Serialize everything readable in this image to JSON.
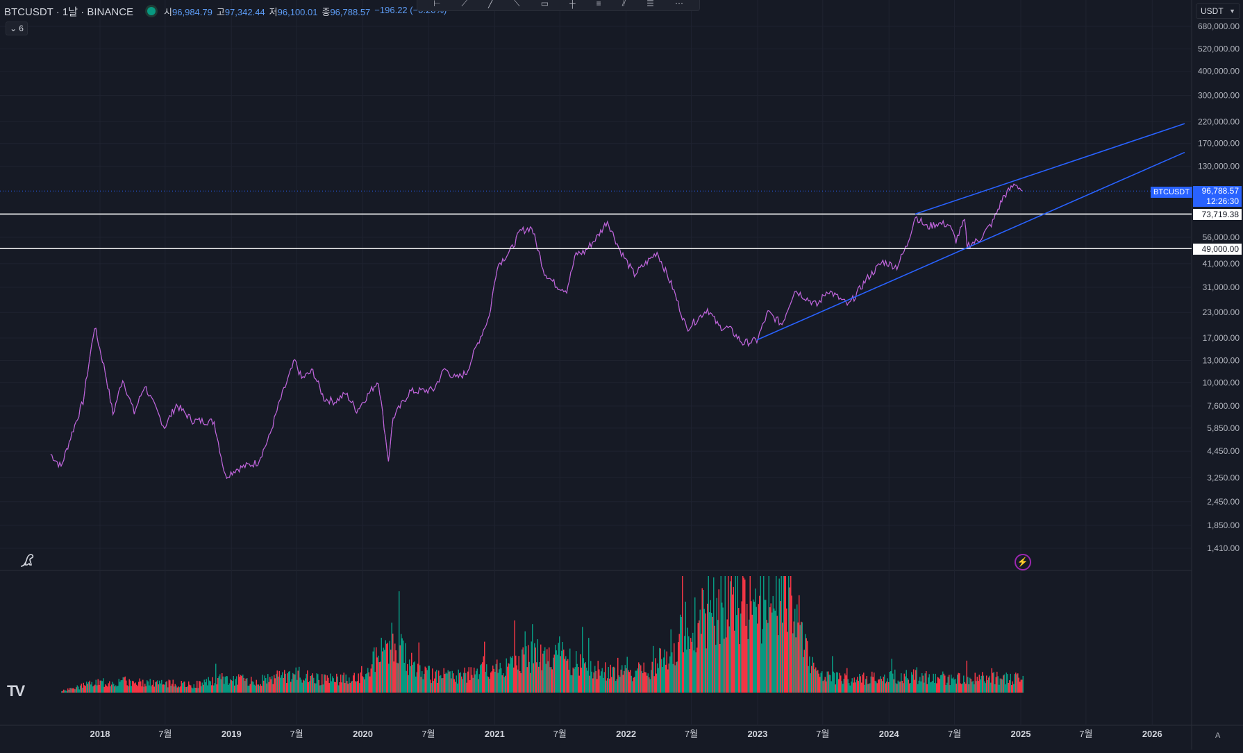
{
  "header": {
    "symbol_line": "BTCUSDT · 1날 · BINANCE",
    "ohlc": [
      {
        "key": "시",
        "value": "96,984.79"
      },
      {
        "key": "고",
        "value": "97,342.44"
      },
      {
        "key": "저",
        "value": "96,100.01"
      },
      {
        "key": "종",
        "value": "96,788.57"
      }
    ],
    "change": "−196.22 (−0.20%)",
    "indicator_count": "6"
  },
  "toolbar": {
    "currency": "USDT",
    "tool_icons": [
      "horizontal-line-icon",
      "ray-icon",
      "trend-line-icon",
      "extended-line-icon",
      "rectangle-icon",
      "cross-line-icon",
      "parallel-channel-icon",
      "parallel-lines-icon",
      "fib-icon",
      "ruler-icon"
    ]
  },
  "price_axis": {
    "labels": [
      "680,000.00",
      "520,000.00",
      "400,000.00",
      "300,000.00",
      "220,000.00",
      "170,000.00",
      "130,000.00",
      "56,000.00",
      "41,000.00",
      "31,000.00",
      "23,000.00",
      "17,000.00",
      "13,000.00",
      "10,000.00",
      "7,600.00",
      "5,850.00",
      "4,450.00",
      "3,250.00",
      "2,450.00",
      "1,850.00",
      "1,410.00"
    ]
  },
  "price_tags": {
    "current_symbol": "BTCUSDT",
    "current_price": "96,788.57",
    "countdown": "12:26:30",
    "level_1": "73,719.38",
    "level_2": "49,000.00"
  },
  "time_axis": {
    "labels": [
      "2018",
      "7월",
      "2019",
      "7월",
      "2020",
      "7월",
      "2021",
      "7월",
      "2022",
      "7월",
      "2023",
      "7월",
      "2024",
      "7월",
      "2025",
      "7월",
      "2026"
    ]
  },
  "footer": {
    "auto_label": "A"
  },
  "colors": {
    "background": "#161a25",
    "up": "#089981",
    "down": "#f23645",
    "price_line": "#c95fd6",
    "channel": "#2962ff",
    "levels": "#ffffff"
  },
  "chart_data": {
    "type": "line",
    "title": "",
    "y_scale": "log",
    "ylim": [
      1410,
      680000
    ],
    "x_range": [
      "2017-09-01",
      "2026-04-01"
    ],
    "series": [
      {
        "values_x": [
          "2017-08-17",
          "2017-09-15",
          "2017-10-15",
          "2017-11-15",
          "2017-12-17",
          "2018-01-15",
          "2018-02-06",
          "2018-03-05",
          "2018-04-06",
          "2018-05-05",
          "2018-06-29",
          "2018-08-01",
          "2018-09-15",
          "2018-11-14",
          "2018-12-15",
          "2019-01-15",
          "2019-03-15",
          "2019-04-15",
          "2019-05-15",
          "2019-06-26",
          "2019-07-15",
          "2019-08-15",
          "2019-09-15",
          "2019-10-15",
          "2019-11-15",
          "2019-12-15",
          "2020-02-13",
          "2020-03-12",
          "2020-03-25",
          "2020-05-10",
          "2020-07-15",
          "2020-08-15",
          "2020-09-15",
          "2020-10-15",
          "2020-11-15",
          "2020-12-17",
          "2021-01-08",
          "2021-02-15",
          "2021-03-13",
          "2021-04-14",
          "2021-05-19",
          "2021-06-22",
          "2021-07-20",
          "2021-08-15",
          "2021-09-07",
          "2021-10-15",
          "2021-11-10",
          "2021-12-15",
          "2022-01-24",
          "2022-03-28",
          "2022-05-10",
          "2022-06-18",
          "2022-07-15",
          "2022-08-15",
          "2022-09-15",
          "2022-10-15",
          "2022-11-21",
          "2022-12-30",
          "2023-01-30",
          "2023-03-10",
          "2023-04-14",
          "2023-06-15",
          "2023-07-15",
          "2023-09-11",
          "2023-10-30",
          "2023-12-15",
          "2024-01-23",
          "2024-02-20",
          "2024-03-14",
          "2024-04-15",
          "2024-05-15",
          "2024-06-15",
          "2024-07-05",
          "2024-07-29",
          "2024-08-05",
          "2024-09-06",
          "2024-10-15",
          "2024-11-13",
          "2024-12-05",
          "2024-12-17",
          "2025-01-06"
        ],
        "values": [
          4300,
          3700,
          5500,
          8000,
          19500,
          11500,
          6900,
          10500,
          7000,
          9700,
          5900,
          7700,
          6400,
          6300,
          3300,
          3600,
          3900,
          5200,
          8000,
          13000,
          10500,
          11500,
          8300,
          8000,
          8800,
          7200,
          10300,
          4000,
          6600,
          9000,
          9200,
          11800,
          10500,
          11300,
          16000,
          22000,
          40000,
          48000,
          60000,
          63000,
          37000,
          31500,
          30000,
          46000,
          47000,
          57000,
          68000,
          48000,
          36000,
          47000,
          31000,
          19000,
          21000,
          24000,
          19500,
          19000,
          16000,
          16500,
          23000,
          20000,
          30000,
          25000,
          30000,
          25000,
          34000,
          42000,
          39500,
          51000,
          72000,
          63000,
          66000,
          65000,
          54000,
          68000,
          51000,
          54000,
          67000,
          90000,
          100000,
          106000,
          96788
        ]
      }
    ],
    "horizontal_levels": [
      73719.38,
      49000.0
    ],
    "channel_lines": [
      {
        "start": [
          "2024-03-14",
          73719
        ],
        "end": [
          "2026-04-01",
          215000
        ]
      },
      {
        "start": [
          "2022-12-30",
          16600
        ],
        "end": [
          "2026-04-01",
          153000
        ]
      }
    ],
    "volume_note": "volume histogram (up/down colored)",
    "volume": {
      "dates": [
        "2017-09",
        "2017-12",
        "2018-03",
        "2018-06",
        "2018-09",
        "2018-12",
        "2019-03",
        "2019-06",
        "2019-09",
        "2019-12",
        "2020-03",
        "2020-06",
        "2020-09",
        "2020-12",
        "2021-03",
        "2021-06",
        "2021-09",
        "2021-12",
        "2022-03",
        "2022-06",
        "2022-09",
        "2022-12",
        "2023-03",
        "2023-06",
        "2023-09",
        "2023-12",
        "2024-03",
        "2024-06",
        "2024-09",
        "2024-12"
      ],
      "values": [
        1,
        6,
        7,
        6,
        5,
        9,
        7,
        12,
        8,
        9,
        32,
        12,
        10,
        15,
        20,
        26,
        14,
        13,
        14,
        42,
        58,
        52,
        68,
        11,
        8,
        10,
        10,
        9,
        9,
        9
      ]
    }
  }
}
